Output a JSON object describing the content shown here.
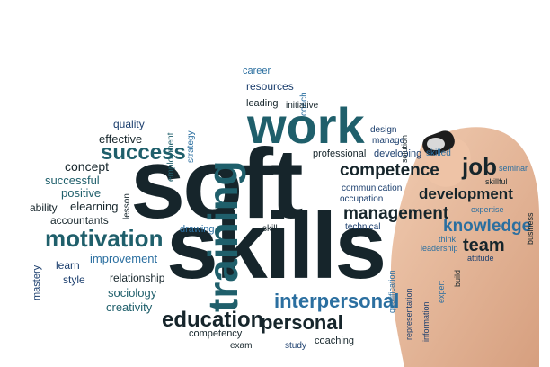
{
  "colors": {
    "dark": "#16252b",
    "teal": "#1f5f6b",
    "blue": "#2b6fa0",
    "navy": "#1c3f6e",
    "cyan": "#2f8fb2",
    "skin": "#e8b99a",
    "marker_cap": "#1d1d1d"
  },
  "words": {
    "soft": "soft",
    "skills": "skills",
    "training": "training",
    "work": "work",
    "success": "success",
    "motivation": "motivation",
    "education": "education",
    "personal": "personal",
    "interpersonal": "interpersonal",
    "competence": "competence",
    "management": "management",
    "development": "development",
    "job": "job",
    "knowledge": "knowledge",
    "team": "team",
    "career": "career",
    "resources": "resources",
    "coach": "coach",
    "leading": "leading",
    "initiative": "initiative",
    "employment": "employment",
    "strategy": "strategy",
    "quality": "quality",
    "effective": "effective",
    "concept": "concept",
    "successful": "successful",
    "positive": "positive",
    "lesson": "lesson",
    "ability": "ability",
    "elearning": "elearning",
    "accountants": "accountants",
    "mastery": "mastery",
    "learn": "learn",
    "improvement": "improvement",
    "style": "style",
    "relationship": "relationship",
    "sociology": "sociology",
    "creativity": "creativity",
    "drawing": "drawing",
    "skill": "skill",
    "design": "design",
    "manage": "manage",
    "solution": "solution",
    "professional": "professional",
    "developing": "developing",
    "skilled": "skilled",
    "seminar": "seminar",
    "skillful": "skillful",
    "business": "business",
    "communication": "communication",
    "occupation": "occupation",
    "expertise": "expertise",
    "technical": "technical",
    "qualification": "qualification",
    "representation": "representation",
    "information": "information",
    "think": "think",
    "leadership": "leadership",
    "expert": "expert",
    "build": "build",
    "attitude": "attitude",
    "competency": "competency",
    "exam": "exam",
    "study": "study",
    "coaching": "coaching"
  }
}
